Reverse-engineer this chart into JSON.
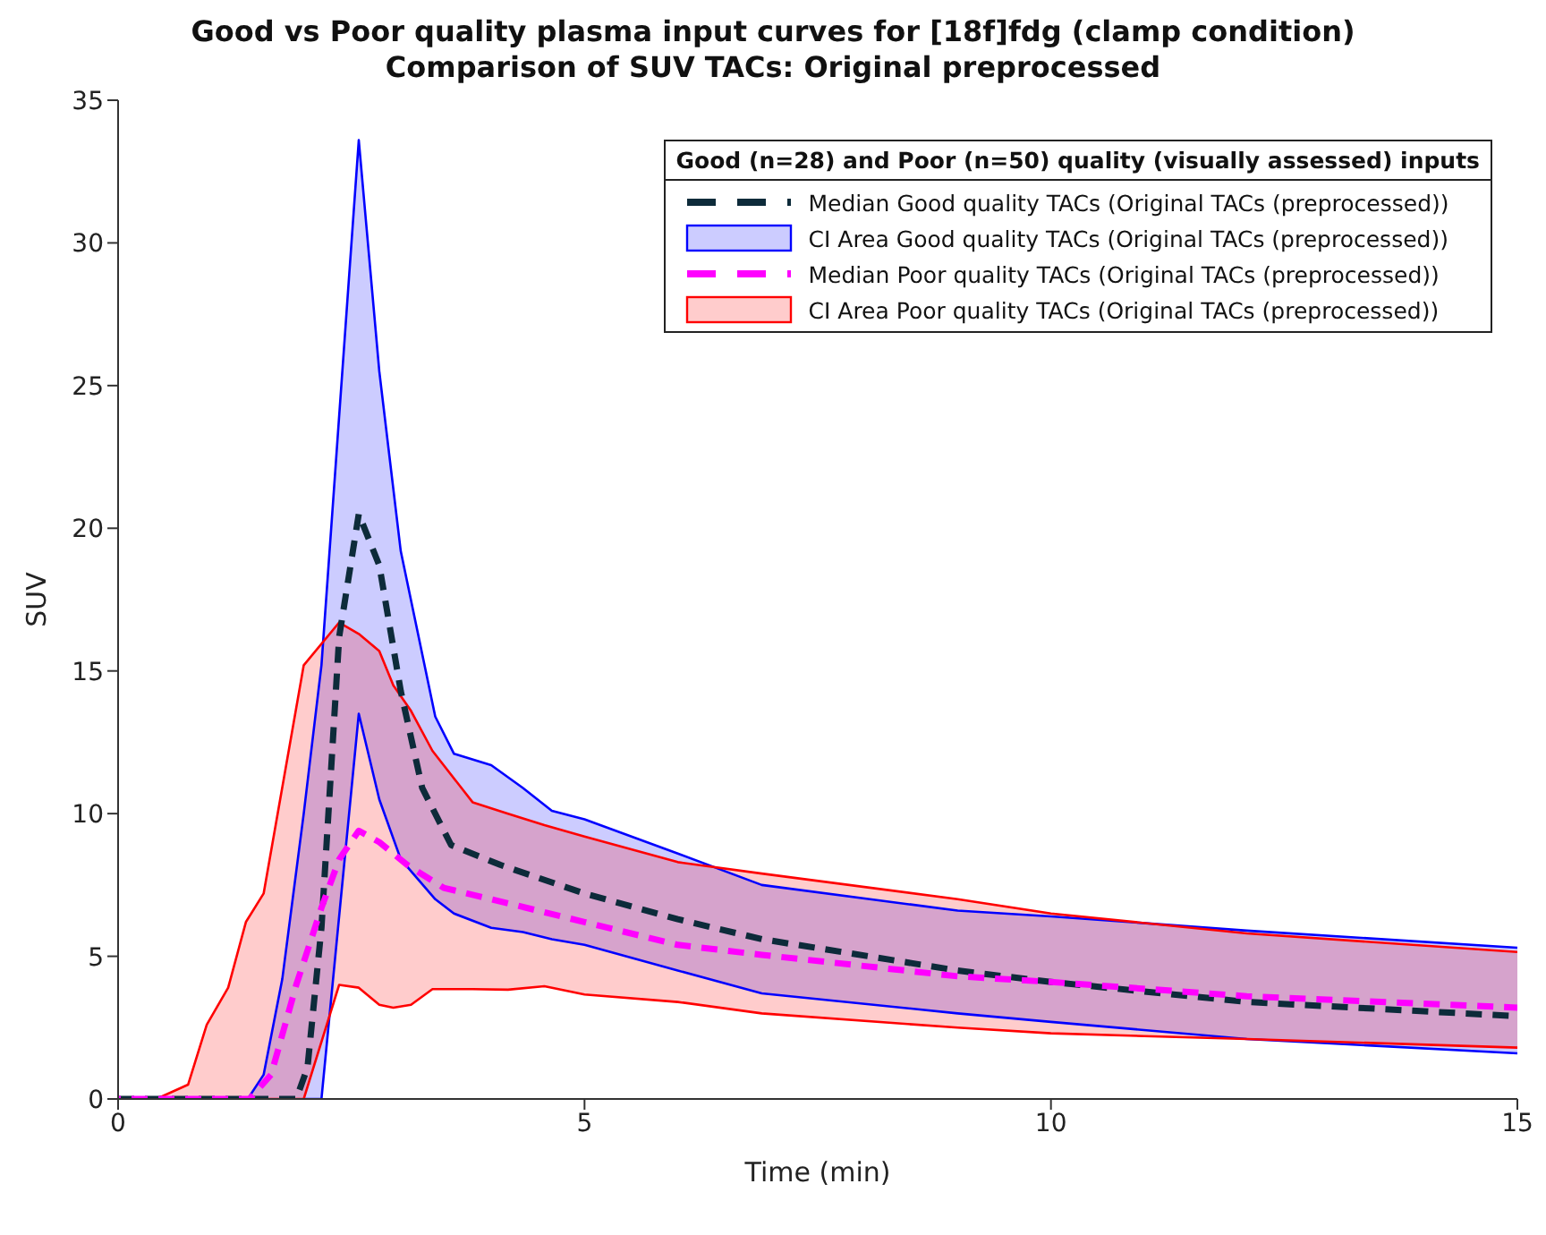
{
  "chart_data": {
    "type": "line",
    "title": "Good vs Poor quality plasma input curves for [18f]fdg (clamp condition)",
    "subtitle": "Comparison of SUV TACs: Original preprocessed",
    "xlabel": "Time (min)",
    "ylabel": "SUV",
    "legend_title": "Good (n=28) and Poor (n=50) quality (visually assessed) inputs",
    "legend": "top right",
    "xlim": [
      0,
      15
    ],
    "xticks": [
      0,
      5,
      10,
      15
    ],
    "ylim": [
      0,
      35
    ],
    "yticks": [
      0,
      5,
      10,
      15,
      20,
      25,
      30,
      35
    ],
    "series": [
      {
        "name": "Median Good quality TACs (Original TACs (preprocessed))",
        "line_style": "dashed",
        "color": "#0d2b3a",
        "x": [
          0,
          1.91,
          2.03,
          2.18,
          2.37,
          2.58,
          2.8,
          3.03,
          3.26,
          3.57,
          4.1,
          5.0,
          6.0,
          6.9,
          9.0,
          10,
          12.1,
          15
        ],
        "values": [
          0,
          0,
          1.1,
          6.0,
          16.2,
          20.5,
          18.7,
          14.3,
          10.9,
          8.9,
          8.2,
          7.2,
          6.3,
          5.6,
          4.5,
          4.1,
          3.4,
          2.9
        ]
      },
      {
        "name": "CI Area Good quality TACs (Original TACs (preprocessed))",
        "line_style": "solid",
        "color": "#0000ff",
        "x": [
          0,
          1.39,
          1.56,
          1.76,
          1.99,
          2.18,
          2.58,
          2.8,
          3.03,
          3.4,
          3.6,
          4.0,
          4.34,
          4.65,
          5.0,
          6.0,
          6.9,
          9.0,
          10,
          12.1,
          15
        ],
        "values": [
          0,
          0,
          0.85,
          4.2,
          10,
          15.2,
          33.6,
          25.5,
          19.2,
          13.4,
          12.1,
          11.7,
          10.9,
          10.1,
          9.8,
          8.6,
          7.5,
          6.6,
          6.4,
          5.9,
          5.3
        ],
        "upper": [
          0,
          0,
          0.85,
          4.2,
          10,
          15.2,
          33.6,
          25.5,
          19.2,
          13.4,
          12.1,
          11.7,
          10.9,
          10.1,
          9.8,
          8.6,
          7.5,
          6.6,
          6.4,
          5.9,
          5.3
        ],
        "lower": [
          0,
          0,
          0,
          0,
          0,
          0,
          13.5,
          10.5,
          8.4,
          7.0,
          6.5,
          6.0,
          5.85,
          5.6,
          5.4,
          4.5,
          3.7,
          3.0,
          2.7,
          2.1,
          1.6
        ]
      },
      {
        "line_style": "solid",
        "color": "#0000ff",
        "x": [
          1.99,
          2.18,
          2.58,
          2.8,
          3.03,
          3.4,
          3.6,
          4.0,
          4.34,
          4.65,
          5.0,
          6.0,
          6.9,
          9.0,
          10,
          12.1,
          15
        ],
        "values": [
          0,
          0,
          13.5,
          10.5,
          8.4,
          7.0,
          6.5,
          6.0,
          5.85,
          5.6,
          5.4,
          4.5,
          3.7,
          3.0,
          2.7,
          2.1,
          1.6
        ]
      },
      {
        "name": "Median Poor quality TACs (Original TACs (preprocessed))",
        "line_style": "dashed",
        "color": "#ff00ff",
        "x": [
          0,
          1.41,
          1.64,
          1.91,
          2.18,
          2.37,
          2.58,
          2.8,
          3.1,
          3.49,
          4.0,
          5.0,
          6.0,
          6.9,
          9.0,
          10,
          12.1,
          15
        ],
        "values": [
          0,
          0,
          0.85,
          4.0,
          6.7,
          8.4,
          9.4,
          9.0,
          8.2,
          7.4,
          7.0,
          6.2,
          5.4,
          5.05,
          4.3,
          4.1,
          3.6,
          3.2
        ]
      },
      {
        "name": "CI Area Poor quality TACs (Original TACs (preprocessed))",
        "line_style": "solid",
        "color": "#ff0000",
        "x": [
          0,
          0.41,
          0.75,
          0.95,
          1.18,
          1.37,
          1.56,
          1.99,
          2.37,
          2.58,
          2.8,
          2.95,
          3.14,
          3.37,
          3.8,
          4.18,
          4.57,
          5.0,
          6.0,
          6.9,
          9.0,
          10,
          12.1,
          15
        ],
        "values": [
          0,
          0,
          0.5,
          2.6,
          3.9,
          6.2,
          7.2,
          15.2,
          16.7,
          16.3,
          15.7,
          14.5,
          13.6,
          12.2,
          10.4,
          10.0,
          9.6,
          9.2,
          8.3,
          7.9,
          7.0,
          6.5,
          5.8,
          5.15
        ],
        "upper": [
          0,
          0,
          0.5,
          2.6,
          3.9,
          6.2,
          7.2,
          15.2,
          16.7,
          16.3,
          15.7,
          14.5,
          13.6,
          12.2,
          10.4,
          10.0,
          9.6,
          9.2,
          8.3,
          7.9,
          7.0,
          6.5,
          5.8,
          5.15
        ],
        "lower": [
          0,
          0,
          0,
          0,
          0,
          0,
          0,
          0,
          4.0,
          3.9,
          3.3,
          3.2,
          3.3,
          3.85,
          3.85,
          3.83,
          3.95,
          3.66,
          3.4,
          3.0,
          2.5,
          2.3,
          2.1,
          1.8
        ]
      },
      {
        "line_style": "solid",
        "color": "#ff0000",
        "x": [
          0,
          0.41,
          0.75,
          0.95,
          1.18,
          1.37,
          1.56,
          1.99,
          2.37,
          2.58,
          2.8,
          2.95,
          3.14,
          3.37,
          3.8,
          4.18,
          4.57,
          5.0,
          6.0,
          6.9,
          9.0,
          10,
          12.1,
          15
        ],
        "values": [
          0,
          0,
          0,
          0,
          0,
          0,
          0,
          0,
          4.0,
          3.9,
          3.3,
          3.2,
          3.3,
          3.85,
          3.85,
          3.83,
          3.95,
          3.66,
          3.4,
          3.0,
          2.5,
          2.3,
          2.1,
          1.8
        ]
      }
    ]
  }
}
